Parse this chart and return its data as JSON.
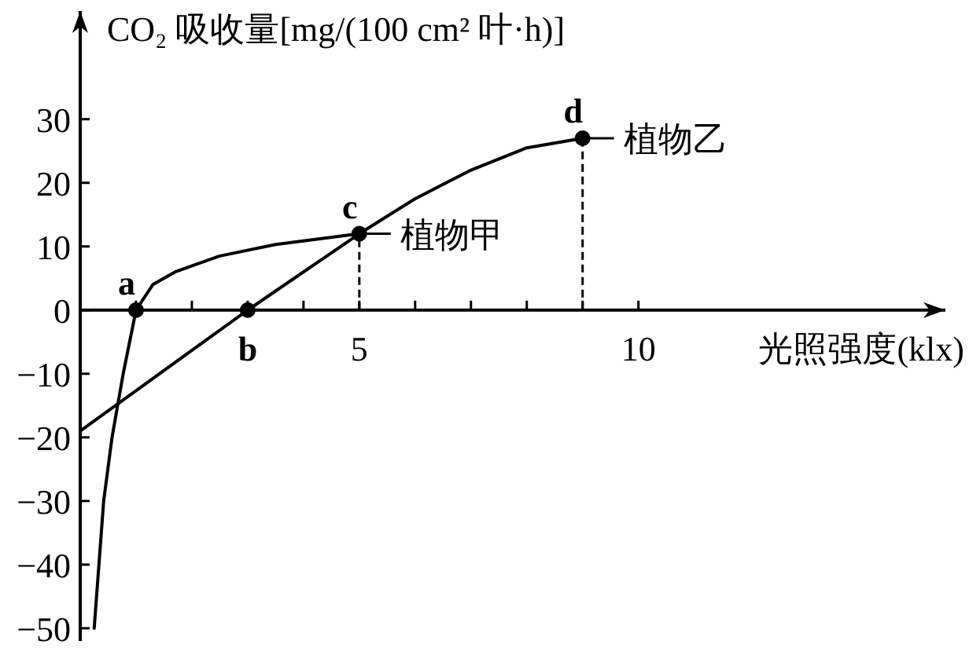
{
  "chart_data": {
    "type": "line",
    "ylabel": "CO₂ 吸收量[mg/(100 cm² 叶·h)]",
    "xlabel": "光照强度(klx)",
    "xlim": [
      0,
      15.5
    ],
    "ylim": [
      -52,
      47
    ],
    "xticks": [
      {
        "value": 1,
        "label": null
      },
      {
        "value": 2,
        "label": null
      },
      {
        "value": 3,
        "label": null
      },
      {
        "value": 4,
        "label": null
      },
      5,
      {
        "value": 6,
        "label": null
      },
      {
        "value": 7,
        "label": null
      },
      {
        "value": 8,
        "label": null
      },
      {
        "value": 9,
        "label": null
      },
      10
    ],
    "yticks": [
      -50,
      -40,
      -30,
      -20,
      -10,
      0,
      10,
      20,
      30
    ],
    "line_style": "solid",
    "legend": "right",
    "series": [
      {
        "name": "植物甲",
        "color": "#000000",
        "x": [
          0.25,
          0.42,
          0.57,
          0.77,
          1,
          1.3,
          1.7,
          2.5,
          3.5,
          5
        ],
        "values": [
          -50,
          -30,
          -20,
          -10,
          0,
          4,
          6,
          8.5,
          10.3,
          12
        ]
      },
      {
        "name": "植物乙",
        "color": "#000000",
        "x": [
          0,
          3,
          5,
          6,
          7,
          8,
          9
        ],
        "values": [
          -19,
          0,
          12,
          17.5,
          22,
          25.5,
          27
        ]
      },
      {
        "type": "scatter",
        "marker": "circle",
        "color": "#000000",
        "x": [
          1,
          3,
          5,
          9
        ],
        "values": [
          0,
          0,
          12,
          27
        ]
      }
    ],
    "ref_lines": [
      {
        "axis": "x",
        "value": 5,
        "line_style": "dashed",
        "color": "#000000"
      },
      {
        "axis": "x",
        "value": 9,
        "line_style": "dashed",
        "color": "#000000"
      }
    ],
    "annotations": [
      {
        "text": "a",
        "x": 1,
        "y": 0
      },
      {
        "text": "b",
        "x": 3,
        "y": 0
      },
      {
        "text": "c",
        "x": 5,
        "y": 12
      },
      {
        "text": "d",
        "x": 9,
        "y": 27
      }
    ]
  }
}
